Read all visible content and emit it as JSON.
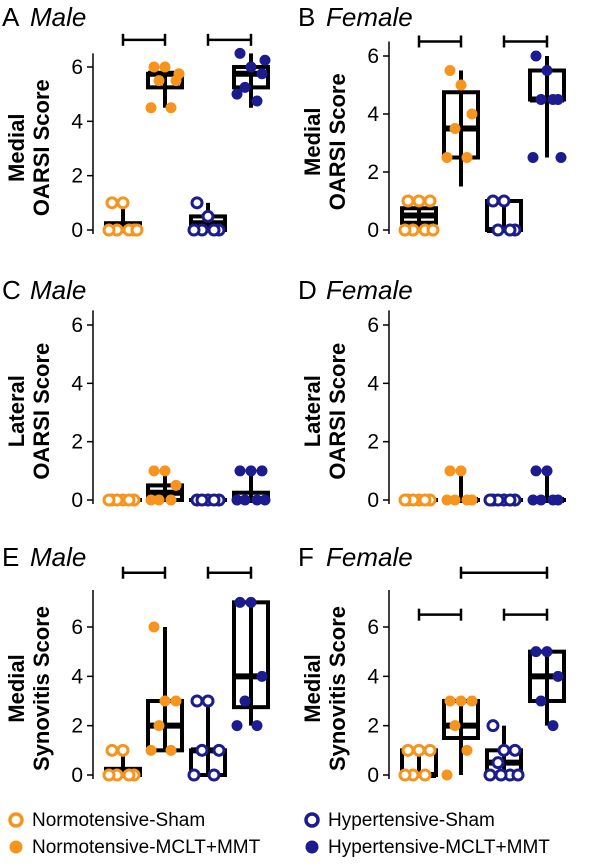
{
  "colors": {
    "normotensive": "#F7941D",
    "hypertensive": "#1B1C8F",
    "black": "#000000"
  },
  "groups": [
    {
      "key": "NS",
      "fill": false,
      "color_key": "normotensive"
    },
    {
      "key": "NM",
      "fill": true,
      "color_key": "normotensive"
    },
    {
      "key": "HS",
      "fill": false,
      "color_key": "hypertensive"
    },
    {
      "key": "HM",
      "fill": true,
      "color_key": "hypertensive"
    }
  ],
  "legend": {
    "items": [
      {
        "label": "Normotensive-Sham",
        "group": "NS"
      },
      {
        "label": "Hypertensive-Sham",
        "group": "HS"
      },
      {
        "label": "Normotensive-MCLT+MMT",
        "group": "NM"
      },
      {
        "label": "Hypertensive-MCLT+MMT",
        "group": "HM"
      }
    ]
  },
  "chart_data": [
    {
      "type": "box",
      "panel": "A",
      "subtitle": "Male",
      "ylabel_lines": [
        "Medial",
        "OARSI Score"
      ],
      "yticks": [
        0,
        2,
        4,
        6
      ],
      "ylim": [
        0,
        6.5
      ],
      "boxes": [
        {
          "group": "NS",
          "min": 0,
          "q1": 0,
          "median": 0,
          "q3": 0.25,
          "max": 1,
          "points": [
            1,
            1,
            0,
            0,
            0,
            0,
            0
          ]
        },
        {
          "group": "NM",
          "min": 4.5,
          "q1": 5.25,
          "median": 5.75,
          "q3": 5.75,
          "max": 6,
          "points": [
            6,
            6,
            5.5,
            5.5,
            4.5,
            4.5,
            5.75
          ]
        },
        {
          "group": "HS",
          "min": 0,
          "q1": 0,
          "median": 0.25,
          "q3": 0.5,
          "max": 1,
          "points": [
            1,
            0.5,
            0,
            0,
            0,
            0
          ]
        },
        {
          "group": "HM",
          "min": 4.5,
          "q1": 5.25,
          "median": 5.75,
          "q3": 6,
          "max": 6.5,
          "points": [
            6.5,
            6,
            5.75,
            5.25,
            4.75,
            5,
            6.25
          ]
        }
      ],
      "brackets": [
        {
          "from": 0,
          "to": 1,
          "level": 7.0
        },
        {
          "from": 2,
          "to": 3,
          "level": 7.0
        }
      ]
    },
    {
      "type": "box",
      "panel": "B",
      "subtitle": "Female",
      "ylabel_lines": [
        "Medial",
        "OARSI Score"
      ],
      "yticks": [
        0,
        2,
        4,
        6
      ],
      "ylim": [
        0,
        6.5
      ],
      "boxes": [
        {
          "group": "NS",
          "min": 0,
          "q1": 0.25,
          "median": 0.5,
          "q3": 0.75,
          "max": 1,
          "points": [
            1,
            1,
            1,
            0,
            0,
            0,
            0
          ]
        },
        {
          "group": "NM",
          "min": 1.5,
          "q1": 2.5,
          "median": 3.5,
          "q3": 4.75,
          "max": 5.5,
          "points": [
            5.5,
            5,
            4,
            3.5,
            2.5,
            2.5
          ]
        },
        {
          "group": "HS",
          "min": 0,
          "q1": 0,
          "median": 0,
          "q3": 1,
          "max": 1,
          "points": [
            1,
            1,
            0,
            0,
            0
          ]
        },
        {
          "group": "HM",
          "min": 2.5,
          "q1": 4.5,
          "median": 4.5,
          "q3": 5.5,
          "max": 6,
          "points": [
            6,
            5.5,
            4.5,
            4.5,
            4.5,
            2.5,
            2.5
          ]
        }
      ],
      "brackets": [
        {
          "from": 0,
          "to": 1,
          "level": 6.5
        },
        {
          "from": 2,
          "to": 3,
          "level": 6.5
        }
      ]
    },
    {
      "type": "box",
      "panel": "C",
      "subtitle": "Male",
      "ylabel_lines": [
        "Lateral",
        "OARSI Score"
      ],
      "yticks": [
        0,
        2,
        4,
        6
      ],
      "ylim": [
        0,
        6.5
      ],
      "boxes": [
        {
          "group": "NS",
          "min": 0,
          "q1": 0,
          "median": 0,
          "q3": 0,
          "max": 0,
          "points": [
            0,
            0,
            0,
            0,
            0,
            0
          ]
        },
        {
          "group": "NM",
          "min": 0,
          "q1": 0,
          "median": 0.25,
          "q3": 0.5,
          "max": 1,
          "points": [
            1,
            1,
            0.5,
            0,
            0,
            0
          ]
        },
        {
          "group": "HS",
          "min": 0,
          "q1": 0,
          "median": 0,
          "q3": 0,
          "max": 0,
          "points": [
            0,
            0,
            0,
            0,
            0
          ]
        },
        {
          "group": "HM",
          "min": 0,
          "q1": 0,
          "median": 0,
          "q3": 0.25,
          "max": 1,
          "points": [
            1,
            1,
            1,
            0,
            0,
            0,
            0
          ]
        }
      ],
      "brackets": []
    },
    {
      "type": "box",
      "panel": "D",
      "subtitle": "Female",
      "ylabel_lines": [
        "Lateral",
        "OARSI Score"
      ],
      "yticks": [
        0,
        2,
        4,
        6
      ],
      "ylim": [
        0,
        6.5
      ],
      "boxes": [
        {
          "group": "NS",
          "min": 0,
          "q1": 0,
          "median": 0,
          "q3": 0,
          "max": 0,
          "points": [
            0,
            0,
            0,
            0,
            0,
            0
          ]
        },
        {
          "group": "NM",
          "min": 0,
          "q1": 0,
          "median": 0,
          "q3": 0,
          "max": 1,
          "points": [
            1,
            1,
            0,
            0,
            0,
            0
          ]
        },
        {
          "group": "HS",
          "min": 0,
          "q1": 0,
          "median": 0,
          "q3": 0,
          "max": 0,
          "points": [
            0,
            0,
            0,
            0,
            0,
            0
          ]
        },
        {
          "group": "HM",
          "min": 0,
          "q1": 0,
          "median": 0,
          "q3": 0,
          "max": 1,
          "points": [
            1,
            1,
            0,
            0,
            0,
            0
          ]
        }
      ],
      "brackets": []
    },
    {
      "type": "box",
      "panel": "E",
      "subtitle": "Male",
      "ylabel_lines": [
        "Medial",
        "Synovitis Score"
      ],
      "yticks": [
        0,
        2,
        4,
        6
      ],
      "ylim": [
        0,
        7.5
      ],
      "boxes": [
        {
          "group": "NS",
          "min": 0,
          "q1": 0,
          "median": 0,
          "q3": 0.25,
          "max": 1,
          "points": [
            1,
            1,
            0,
            0,
            0,
            0
          ]
        },
        {
          "group": "NM",
          "min": 1,
          "q1": 1,
          "median": 2,
          "q3": 3,
          "max": 6,
          "points": [
            6,
            3,
            3,
            2,
            1,
            1
          ]
        },
        {
          "group": "HS",
          "min": 0,
          "q1": 0,
          "median": 1,
          "q3": 1,
          "max": 3,
          "points": [
            3,
            3,
            1,
            1,
            0,
            0
          ]
        },
        {
          "group": "HM",
          "min": 2,
          "q1": 2.75,
          "median": 4,
          "q3": 7,
          "max": 7,
          "points": [
            7,
            7,
            4,
            3,
            2,
            2
          ]
        }
      ],
      "brackets": [
        {
          "from": 0,
          "to": 1,
          "level": 8.2
        },
        {
          "from": 2,
          "to": 3,
          "level": 8.2
        }
      ]
    },
    {
      "type": "box",
      "panel": "F",
      "subtitle": "Female",
      "ylabel_lines": [
        "Medial",
        "Synovitis Score"
      ],
      "yticks": [
        0,
        2,
        4,
        6
      ],
      "ylim": [
        0,
        7.5
      ],
      "boxes": [
        {
          "group": "NS",
          "min": 0,
          "q1": 0,
          "median": 0,
          "q3": 1,
          "max": 1,
          "points": [
            1,
            1,
            1,
            0,
            0,
            0
          ]
        },
        {
          "group": "NM",
          "min": 0,
          "q1": 1.5,
          "median": 2,
          "q3": 3,
          "max": 3,
          "points": [
            3,
            3,
            3,
            2,
            1,
            0
          ]
        },
        {
          "group": "HS",
          "min": 0,
          "q1": 0,
          "median": 0.5,
          "q3": 1,
          "max": 2,
          "points": [
            2,
            1,
            1,
            0.5,
            0,
            0,
            0,
            0
          ]
        },
        {
          "group": "HM",
          "min": 2,
          "q1": 3,
          "median": 4,
          "q3": 5,
          "max": 5,
          "points": [
            5,
            5,
            4,
            3,
            2
          ]
        }
      ],
      "brackets": [
        {
          "from": 1,
          "to": 3,
          "level": 8.2
        },
        {
          "from": 0,
          "to": 1,
          "level": 6.5
        },
        {
          "from": 2,
          "to": 3,
          "level": 6.5
        }
      ]
    }
  ]
}
